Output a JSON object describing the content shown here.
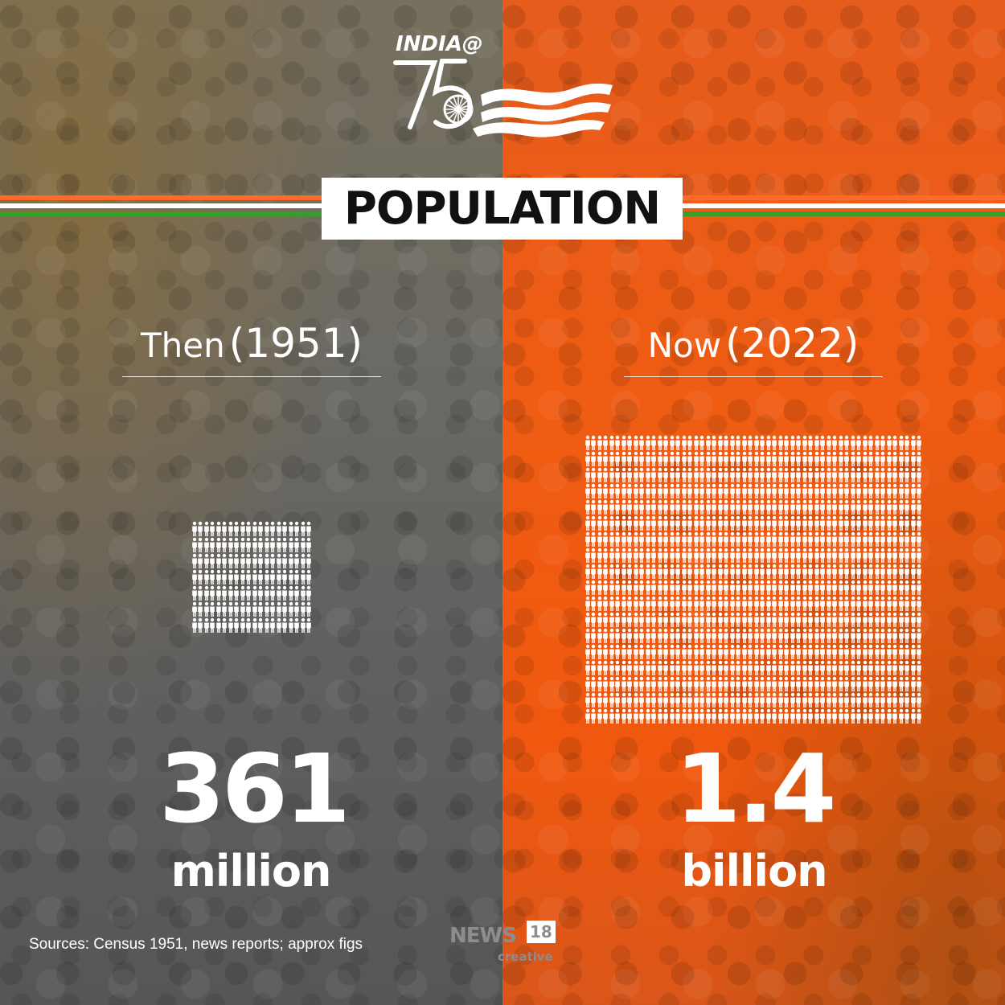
{
  "logo": {
    "text": "INDIA@",
    "icon": "india-at-75-flag-logo",
    "number": "75"
  },
  "title": "POPULATION",
  "then": {
    "word": "Then",
    "year": "(1951)",
    "value": "361",
    "unit": "million",
    "icon_rows": 7,
    "icon_cols": 10
  },
  "now": {
    "word": "Now",
    "year": "(2022)",
    "value": "1.4",
    "unit": "billion",
    "icon_rows": 18,
    "icon_cols": 28
  },
  "footer": {
    "sources": "Sources: Census 1951, news reports; approx figs",
    "brand_news": "NEWS",
    "brand_number": "18",
    "brand_creative": "creative"
  },
  "colors": {
    "saffron": "#ff6a2b",
    "green": "#34a02a",
    "orange_panel": "#f0580f",
    "grey_panel": "#606060"
  }
}
